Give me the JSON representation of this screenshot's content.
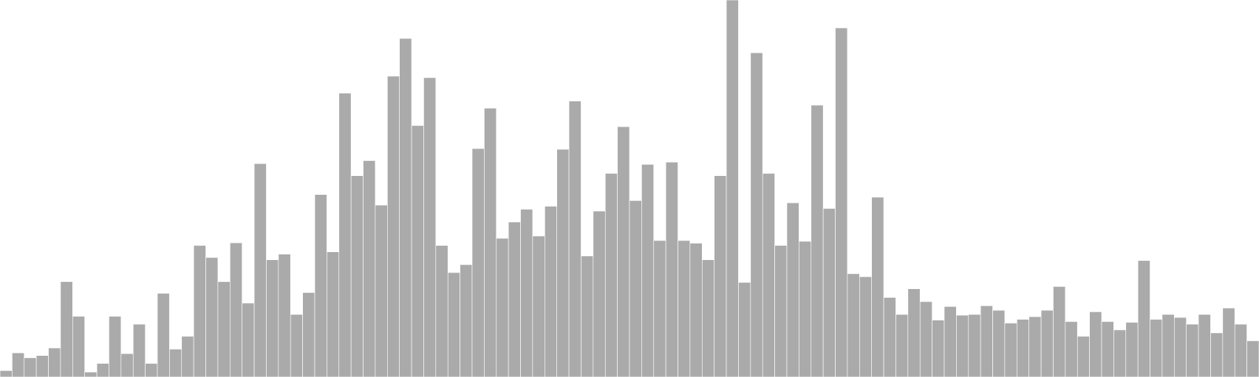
{
  "chart_data": {
    "type": "bar",
    "title": "",
    "xlabel": "",
    "ylabel": "",
    "ylim": [
      0,
      100
    ],
    "grid": false,
    "legend": "none",
    "bar_color": "#aaaaaa",
    "bar_edge_color": "#ffffff",
    "background": "#ffffff",
    "values": [
      1.7,
      6.4,
      5.1,
      5.7,
      7.7,
      25.3,
      16.1,
      1.3,
      3.6,
      16.1,
      6.2,
      14.0,
      3.6,
      22.2,
      7.4,
      10.8,
      34.9,
      31.7,
      25.3,
      35.6,
      19.6,
      56.6,
      31.1,
      32.6,
      16.6,
      22.4,
      48.4,
      33.2,
      75.3,
      53.4,
      57.4,
      45.6,
      79.8,
      89.8,
      66.7,
      79.4,
      34.9,
      27.7,
      29.8,
      60.6,
      71.3,
      36.8,
      41.1,
      44.5,
      37.4,
      45.3,
      60.4,
      73.2,
      32.1,
      44.0,
      54.0,
      66.4,
      46.8,
      56.4,
      36.2,
      57.0,
      36.2,
      35.5,
      31.1,
      53.4,
      100.0,
      25.1,
      86.0,
      54.0,
      34.9,
      46.2,
      36.0,
      72.1,
      44.7,
      92.6,
      27.4,
      26.6,
      47.7,
      21.1,
      16.6,
      23.4,
      20.0,
      15.1,
      18.7,
      16.4,
      16.6,
      18.9,
      17.7,
      14.3,
      15.3,
      16.0,
      17.7,
      24.0,
      14.7,
      10.8,
      17.3,
      14.7,
      12.5,
      14.5,
      30.9,
      15.3,
      16.6,
      15.8,
      14.0,
      16.6,
      11.7,
      18.3,
      14.0,
      9.6
    ]
  }
}
